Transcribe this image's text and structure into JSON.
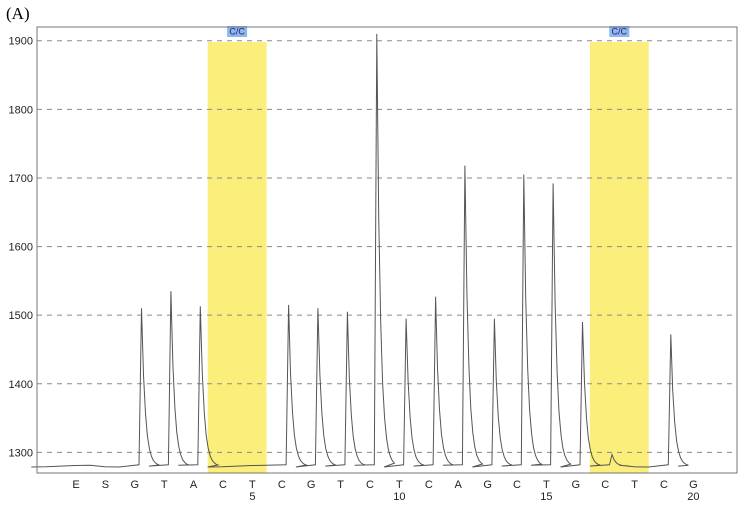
{
  "panel_label": "(A)",
  "colors": {
    "highlight": "#fbee7a",
    "highlight_tag": "#8fb6ee",
    "trace": "#555555",
    "grid": "#8a8a8a"
  },
  "chart_data": {
    "type": "line",
    "title": "",
    "xlabel": "",
    "ylabel": "",
    "ylim": [
      1270,
      1920
    ],
    "yticks": [
      1300,
      1400,
      1500,
      1600,
      1700,
      1800,
      1900
    ],
    "grid": "horizontal-dashed",
    "dispensation_order": [
      "E",
      "S",
      "G",
      "T",
      "A",
      "C",
      "T",
      "C",
      "G",
      "T",
      "C",
      "T",
      "C",
      "A",
      "G",
      "C",
      "T",
      "G",
      "C",
      "T",
      "C",
      "G"
    ],
    "position_numbers": [
      {
        "index": 7,
        "label": "5"
      },
      {
        "index": 12,
        "label": "10"
      },
      {
        "index": 17,
        "label": "15"
      },
      {
        "index": 22,
        "label": "20"
      }
    ],
    "baseline": 1280,
    "peaks": [
      0,
      0,
      0,
      1510,
      1535,
      1513,
      0,
      0,
      1515,
      1510,
      1505,
      1910,
      1495,
      1527,
      1718,
      1495,
      1705,
      1692,
      1490,
      1297,
      0,
      1472
    ],
    "highlights": [
      {
        "label": "C/C",
        "from_index": 6,
        "to_index": 7
      },
      {
        "label": "C/C",
        "from_index": 19,
        "to_index": 20
      }
    ]
  }
}
